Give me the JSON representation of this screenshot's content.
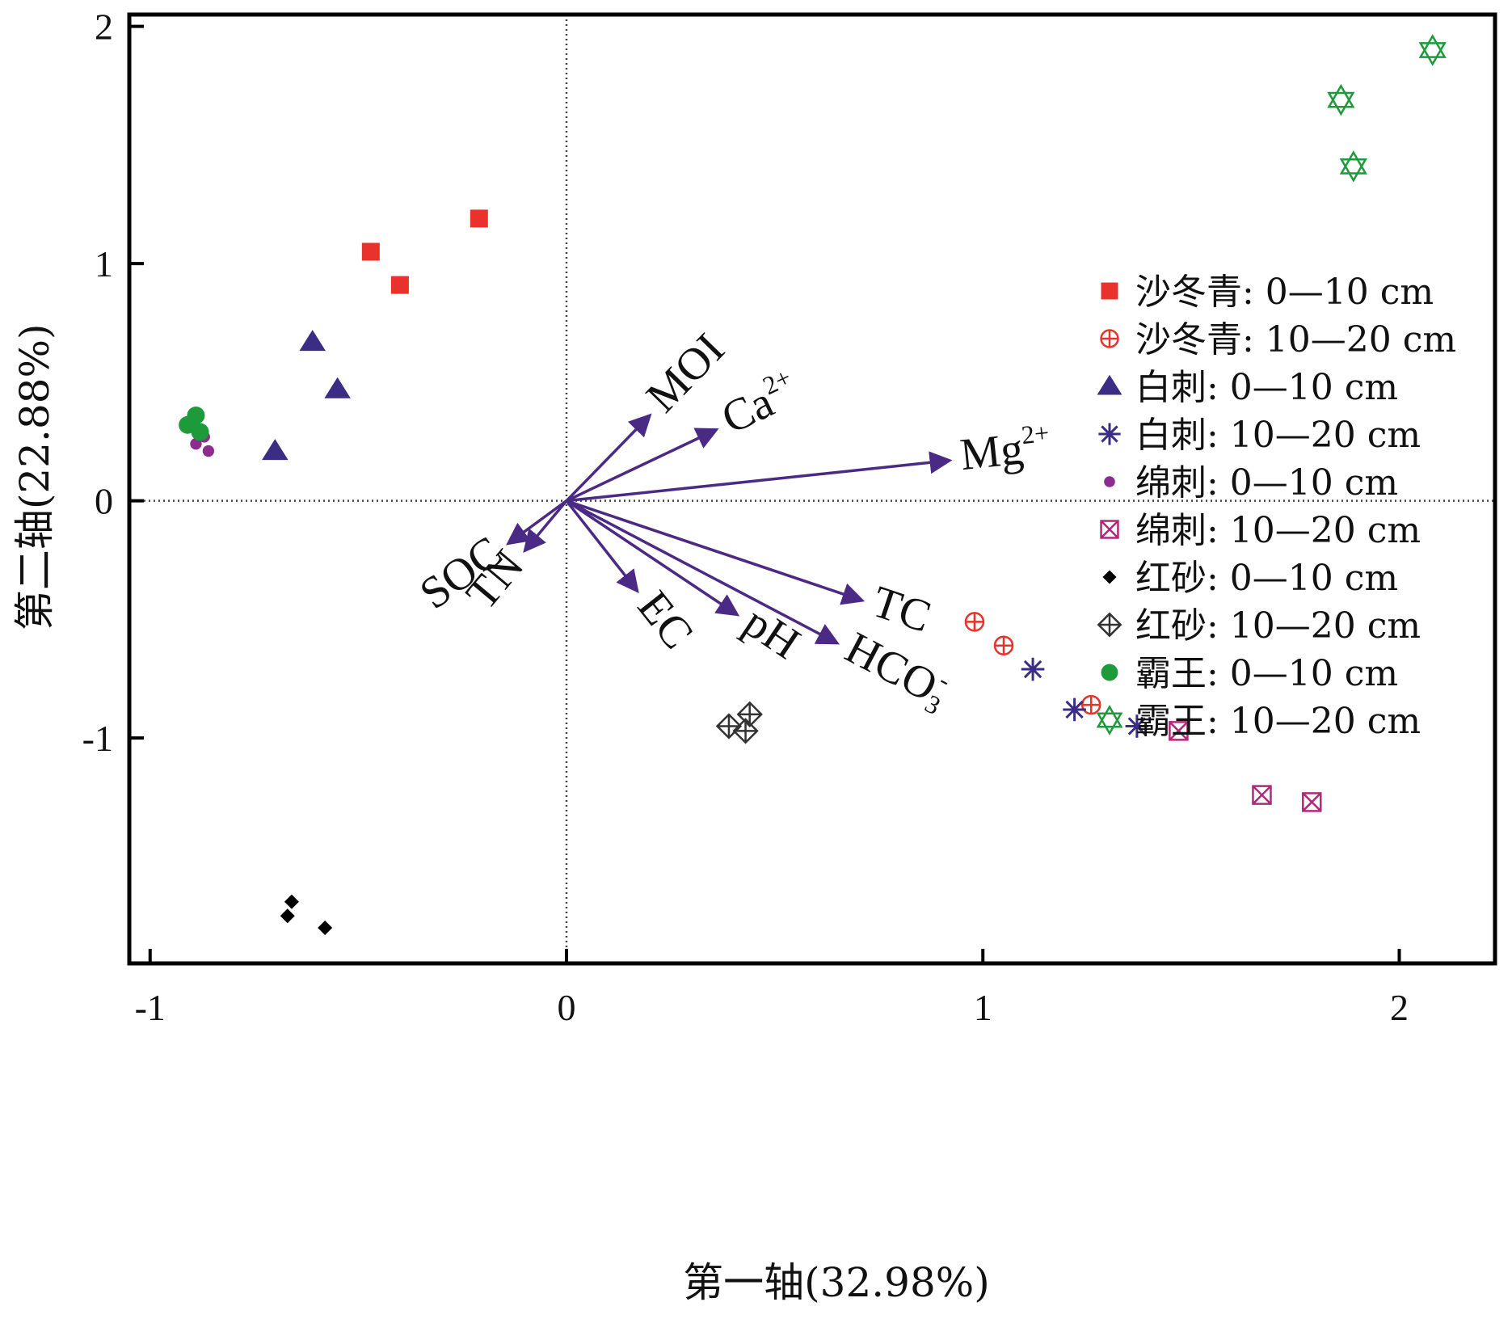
{
  "chart_data": {
    "type": "scatter",
    "title": "",
    "xlabel": "第一轴(32.98%)",
    "ylabel": "第二轴(22.88%)",
    "xlim": [
      -1.05,
      2.23
    ],
    "ylim": [
      -1.95,
      2.05
    ],
    "xticks": [
      -1,
      0,
      1,
      2
    ],
    "yticks": [
      2,
      1,
      0,
      -1
    ],
    "xtick_labels": [
      "-1",
      "0",
      "1",
      "2"
    ],
    "ytick_labels": [
      "2",
      "1",
      "0",
      "-1"
    ],
    "reference_lines": {
      "x": 0,
      "y": 0,
      "style": "dotted"
    },
    "grid": false,
    "legend_position": "right",
    "vectors": [
      {
        "name": "MOI",
        "x": 0.2,
        "y": 0.36
      },
      {
        "name": "Ca",
        "sup": "2+",
        "x": 0.36,
        "y": 0.3
      },
      {
        "name": "Mg",
        "sup": "2+",
        "x": 0.92,
        "y": 0.17
      },
      {
        "name": "SOC",
        "x": -0.14,
        "y": -0.18
      },
      {
        "name": "TN",
        "x": -0.1,
        "y": -0.21
      },
      {
        "name": "EC",
        "x": 0.17,
        "y": -0.38
      },
      {
        "name": "pH",
        "x": 0.41,
        "y": -0.48
      },
      {
        "name": "HCO",
        "sub": "3",
        "sup": "-",
        "x": 0.65,
        "y": -0.6
      },
      {
        "name": "TC",
        "x": 0.71,
        "y": -0.42
      }
    ],
    "series": [
      {
        "name": "沙冬青: 0—10 cm",
        "marker": "square",
        "color": "#e8322b",
        "points": [
          [
            -0.47,
            1.05
          ],
          [
            -0.4,
            0.91
          ],
          [
            -0.21,
            1.19
          ]
        ]
      },
      {
        "name": "沙冬青: 10—20 cm",
        "marker": "circle-plus",
        "color": "#e8322b",
        "points": [
          [
            0.98,
            -0.51
          ],
          [
            1.05,
            -0.61
          ],
          [
            1.26,
            -0.86
          ]
        ]
      },
      {
        "name": "白刺: 0—10 cm",
        "marker": "triangle",
        "color": "#3b2c84",
        "points": [
          [
            -0.61,
            0.67
          ],
          [
            -0.55,
            0.47
          ],
          [
            -0.7,
            0.21
          ]
        ]
      },
      {
        "name": "白刺: 10—20 cm",
        "marker": "asterisk",
        "color": "#3b2c84",
        "points": [
          [
            1.12,
            -0.71
          ],
          [
            1.22,
            -0.88
          ],
          [
            1.37,
            -0.95
          ]
        ]
      },
      {
        "name": "绵刺: 0—10 cm",
        "marker": "small-circle",
        "color": "#8e2b8f",
        "points": [
          [
            -0.87,
            0.27
          ],
          [
            -0.89,
            0.24
          ],
          [
            -0.86,
            0.21
          ]
        ]
      },
      {
        "name": "绵刺: 10—20 cm",
        "marker": "box-x",
        "color": "#b0287a",
        "points": [
          [
            1.47,
            -0.97
          ],
          [
            1.67,
            -1.24
          ],
          [
            1.79,
            -1.27
          ]
        ]
      },
      {
        "name": "红砂: 0—10 cm",
        "marker": "diamond",
        "color": "#000000",
        "points": [
          [
            -0.66,
            -1.69
          ],
          [
            -0.67,
            -1.75
          ],
          [
            -0.58,
            -1.8
          ]
        ]
      },
      {
        "name": "红砂: 10—20 cm",
        "marker": "diamond-plus",
        "color": "#333333",
        "points": [
          [
            0.44,
            -0.9
          ],
          [
            0.39,
            -0.95
          ],
          [
            0.43,
            -0.97
          ]
        ]
      },
      {
        "name": "霸王: 0—10 cm",
        "marker": "circle",
        "color": "#1f9a3b",
        "points": [
          [
            -0.89,
            0.36
          ],
          [
            -0.91,
            0.32
          ],
          [
            -0.88,
            0.29
          ]
        ]
      },
      {
        "name": "霸王: 10—20 cm",
        "marker": "hexagram",
        "color": "#1f9a3b",
        "points": [
          [
            2.08,
            1.9
          ],
          [
            1.86,
            1.69
          ],
          [
            1.89,
            1.41
          ]
        ]
      }
    ]
  }
}
